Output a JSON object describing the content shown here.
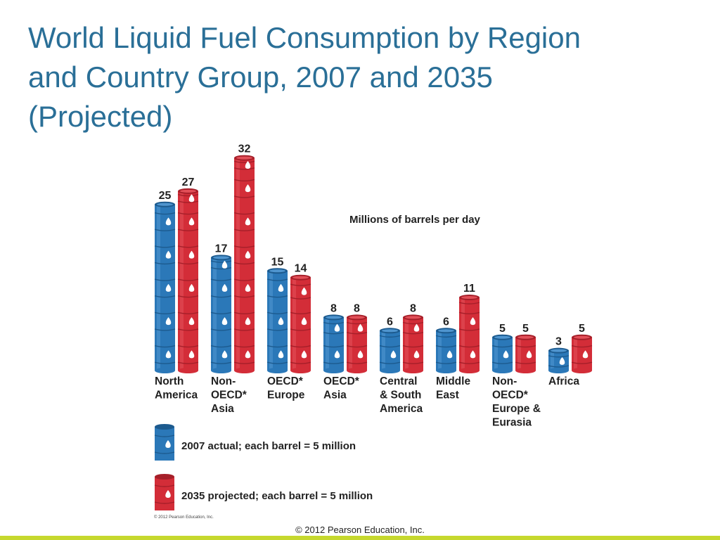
{
  "slide": {
    "title_lines": [
      "World Liquid Fuel Consumption by Region",
      "and Country Group, 2007 and 2035",
      "(Projected)"
    ],
    "footer": "© 2012 Pearson Education, Inc."
  },
  "chart_data": {
    "type": "bar",
    "units_label": "Millions of barrels per day",
    "categories": [
      [
        "North",
        "America"
      ],
      [
        "Non-",
        "OECD*",
        "Asia"
      ],
      [
        "OECD*",
        "Europe"
      ],
      [
        "OECD*",
        "Asia"
      ],
      [
        "Central",
        "& South",
        "America"
      ],
      [
        "Middle",
        "East"
      ],
      [
        "Non-",
        "OECD*",
        "Europe &",
        "Eurasia"
      ],
      [
        "Africa"
      ]
    ],
    "series": [
      {
        "name": "2007 actual; each barrel = 5 million",
        "values": [
          25,
          17,
          15,
          8,
          6,
          6,
          5,
          3
        ],
        "color": "#2b78b8"
      },
      {
        "name": "2035 projected; each barrel = 5 million",
        "values": [
          27,
          32,
          14,
          8,
          8,
          11,
          5,
          5
        ],
        "color": "#d32d38"
      }
    ],
    "barrel_unit": 5,
    "legend_position": "bottom-left",
    "credit": "© 2012 Pearson Education, Inc."
  }
}
